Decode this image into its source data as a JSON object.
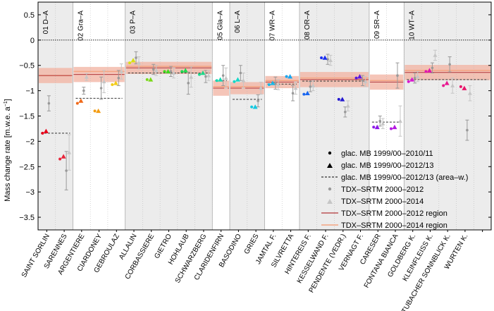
{
  "chart_data": {
    "type": "scatter",
    "title": "",
    "ylabel": "Mass change rate [m.w.e. a",
    "ylabel_sup": "−1",
    "ylabel_close": "]",
    "ylim": [
      -3.75,
      0.75
    ],
    "yticks": [
      0.5,
      0,
      -0.5,
      -1,
      -1.5,
      -2,
      -2.5,
      -3,
      -3.5
    ],
    "ytick_labels": [
      "0.5",
      "0",
      "−0.5",
      "−1",
      "−1.5",
      "−2",
      "−2.5",
      "−3",
      "−3.5"
    ],
    "zero_line": true,
    "regions": [
      {
        "label": "01 D–A",
        "start": 0,
        "end": 2,
        "shaded": true,
        "r2012": -0.7,
        "r2014": -0.7,
        "band": 0.15,
        "area_w": -1.84
      },
      {
        "label": "02 Gra–A",
        "start": 2,
        "end": 5,
        "shaded": false,
        "r2012": -0.68,
        "r2014": -0.62,
        "band": 0.15,
        "area_w": -1.15
      },
      {
        "label": "03 P–A",
        "start": 5,
        "end": 10,
        "shaded": true,
        "r2012": -0.55,
        "r2014": -0.52,
        "band": 0.12,
        "area_w": -0.65
      },
      {
        "label": "05 Gla–A",
        "start": 10,
        "end": 11,
        "shaded": false,
        "r2012": -0.95,
        "r2014": -0.92,
        "band": 0.15,
        "area_w": -0.8
      },
      {
        "label": "06 L–A",
        "start": 11,
        "end": 13,
        "shaded": true,
        "r2012": -0.95,
        "r2014": -0.92,
        "band": 0.12,
        "area_w": -1.17
      },
      {
        "label": "07 WR–A",
        "start": 13,
        "end": 15,
        "shaded": false,
        "r2012": -0.83,
        "r2014": -0.8,
        "band": 0.12,
        "area_w": -0.87
      },
      {
        "label": "08 OR–A",
        "start": 15,
        "end": 19,
        "shaded": true,
        "r2012": -0.78,
        "r2014": -0.75,
        "band": 0.15,
        "area_w": -0.81
      },
      {
        "label": "09 SR–A",
        "start": 19,
        "end": 21,
        "shaded": false,
        "r2012": -0.83,
        "r2014": -0.8,
        "band": 0.15,
        "area_w": -1.62
      },
      {
        "label": "10 WT–A",
        "start": 21,
        "end": 26,
        "shaded": true,
        "r2012": -0.64,
        "r2014": -0.6,
        "band": 0.15,
        "area_w": -0.78
      }
    ],
    "glaciers": [
      {
        "name": "SAINT SORLIN",
        "color": "#e8001a",
        "mb11": -1.84,
        "mb13": -1.8,
        "t12": -1.25,
        "t12e": 0.15,
        "t14": null,
        "t14e": null
      },
      {
        "name": "SARENNES",
        "color": "#e8253a",
        "mb11": -2.35,
        "mb13": -2.3,
        "t12": -2.58,
        "t12e": 0.38,
        "t14": -2.22,
        "t14e": 0.35
      },
      {
        "name": "ARGENTIERE",
        "color": "#f06a1a",
        "mb11": -1.25,
        "mb13": -1.2,
        "t12": -1.0,
        "t12e": 0.07,
        "t14": -0.73,
        "t14e": 0.07
      },
      {
        "name": "CIARDONEY",
        "color": "#f39c12",
        "mb11": -1.4,
        "mb13": -1.4,
        "t12": -0.95,
        "t12e": 0.22,
        "t14": -0.82,
        "t14e": 0.22
      },
      {
        "name": "GEBROULAZ",
        "color": "#f2cc1a",
        "mb11": -0.88,
        "mb13": -0.85,
        "t12": -0.75,
        "t12e": 0.15,
        "t14": -0.62,
        "t14e": 0.15
      },
      {
        "name": "ALLALIN",
        "color": "#d8e014",
        "mb11": -0.45,
        "mb13": -0.4,
        "t12": -0.35,
        "t12e": 0.12,
        "t14": -0.45,
        "t14e": 0.12
      },
      {
        "name": "CORBASSIERE",
        "color": "#7ad818",
        "mb11": -0.78,
        "mb13": -0.78,
        "t12": -0.58,
        "t12e": 0.1,
        "t14": -0.6,
        "t14e": 0.1
      },
      {
        "name": "GIETRO",
        "color": "#3dd81d",
        "mb11": -0.62,
        "mb13": -0.62,
        "t12": -0.62,
        "t12e": 0.1,
        "t14": -0.65,
        "t14e": 0.1
      },
      {
        "name": "HOHLAUB",
        "color": "#1dd84f",
        "mb11": -0.62,
        "mb13": -0.6,
        "t12": -0.85,
        "t12e": 0.22,
        "t14": -0.73,
        "t14e": 0.2
      },
      {
        "name": "SCHWARZBERG",
        "color": "#1dd88a",
        "mb11": -0.68,
        "mb13": -0.65,
        "t12": -0.72,
        "t12e": 0.12,
        "t14": -0.7,
        "t14e": 0.1
      },
      {
        "name": "CLARIDENFIRN",
        "color": "#14d8b2",
        "mb11": -0.8,
        "mb13": -0.78,
        "t12": -0.7,
        "t12e": 0.2,
        "t14": -0.75,
        "t14e": 0.2
      },
      {
        "name": "BASODINO",
        "color": "#14d8c8",
        "mb11": -0.82,
        "mb13": -0.78,
        "t12": -0.65,
        "t12e": 0.15,
        "t14": -0.8,
        "t14e": 0.15
      },
      {
        "name": "GRIES",
        "color": "#14c8e0",
        "mb11": -1.32,
        "mb13": -1.32,
        "t12": -1.2,
        "t12e": 0.12,
        "t14": -0.95,
        "t14e": 0.12
      },
      {
        "name": "JAMTAL F.",
        "color": "#14b8e8",
        "mb11": -0.88,
        "mb13": -0.85,
        "t12": -0.85,
        "t12e": 0.12,
        "t14": -0.88,
        "t14e": 0.1
      },
      {
        "name": "SILVRETTA",
        "color": "#18a6f0",
        "mb11": -0.72,
        "mb13": -0.72,
        "t12": -1.05,
        "t12e": 0.15,
        "t14": -0.95,
        "t14e": 0.12
      },
      {
        "name": "HINTEREIS F.",
        "color": "#1a66f0",
        "mb11": -1.07,
        "mb13": -1.05,
        "t12": -0.92,
        "t12e": 0.1,
        "t14": -0.9,
        "t14e": 0.1
      },
      {
        "name": "KESSELWAND F.",
        "color": "#1a2ef0",
        "mb11": -0.35,
        "mb13": -0.35,
        "t12": -0.38,
        "t12e": 0.1,
        "t14": -0.4,
        "t14e": 0.1
      },
      {
        "name": "PENDENTE (VEDR.)",
        "color": "#2318d0",
        "mb11": -1.17,
        "mb13": -1.17,
        "t12": -1.42,
        "t12e": 0.1,
        "t14": -1.3,
        "t14e": 0.1
      },
      {
        "name": "VERNAGT F.",
        "color": "#5a18e0",
        "mb11": -0.75,
        "mb13": -0.72,
        "t12": -0.8,
        "t12e": 0.1,
        "t14": -0.82,
        "t14e": 0.1
      },
      {
        "name": "CARESER",
        "color": "#8c18e8",
        "mb11": -1.72,
        "mb13": -1.72,
        "t12": -1.6,
        "t12e": 0.1,
        "t14": -1.65,
        "t14e": 0.1
      },
      {
        "name": "FONTANA BIANCA",
        "color": "#b418e0",
        "mb11": -1.75,
        "mb13": -1.72,
        "t12": -0.7,
        "t12e": 0.25,
        "t14": -1.6,
        "t14e": 0.3
      },
      {
        "name": "GOLDBERG K.",
        "color": "#d818d0",
        "mb11": -0.82,
        "mb13": -0.78,
        "t12": -0.75,
        "t12e": 0.1,
        "t14": -0.72,
        "t14e": 0.1
      },
      {
        "name": "KLEINFLEISS K.",
        "color": "#e018b0",
        "mb11": -0.62,
        "mb13": -0.6,
        "t12": -0.55,
        "t12e": 0.1,
        "t14": -0.3,
        "t14e": 0.1
      },
      {
        "name": "STUBACHER SONNBLICK K.",
        "color": "#e81890",
        "mb11": -0.9,
        "mb13": -0.85,
        "t12": -0.48,
        "t12e": 0.15,
        "t14": -0.9,
        "t14e": 0.15
      },
      {
        "name": "WURTEN K.",
        "color": "#e8146a",
        "mb11": -0.92,
        "mb13": -0.95,
        "t12": -1.78,
        "t12e": 0.2,
        "t14": -1.05,
        "t14e": 0.15
      },
      {
        "name": "",
        "color": "#e81a50",
        "mb11": null,
        "mb13": null,
        "t12": null,
        "t12e": null,
        "t14": null,
        "t14e": null
      }
    ],
    "legend": {
      "position": "lower-right",
      "entries": [
        {
          "key": "mb11",
          "label": "glac. MB 1999/00–2010/11"
        },
        {
          "key": "mb13",
          "label": "glac. MB 1999/00–2012/13"
        },
        {
          "key": "areaw",
          "label": "glac. MB 1999/00–2012/13 (area–w.)"
        },
        {
          "key": "t12",
          "label": "TDX–SRTM 2000–2012"
        },
        {
          "key": "t14",
          "label": "TDX–SRTM 2000–2014"
        },
        {
          "key": "r12",
          "label": "TDX–SRTM 2000–2012 region"
        },
        {
          "key": "r14",
          "label": "TDX–SRTM 2000–2014 region"
        }
      ]
    },
    "colors": {
      "shade": "#ececec",
      "region2012": "#b2373a",
      "region2014": "#f4a582",
      "band": "#f3b6a6",
      "grey_point": "#999999",
      "light_grey": "#c6c6c6",
      "areaw_line": "#333333"
    }
  }
}
